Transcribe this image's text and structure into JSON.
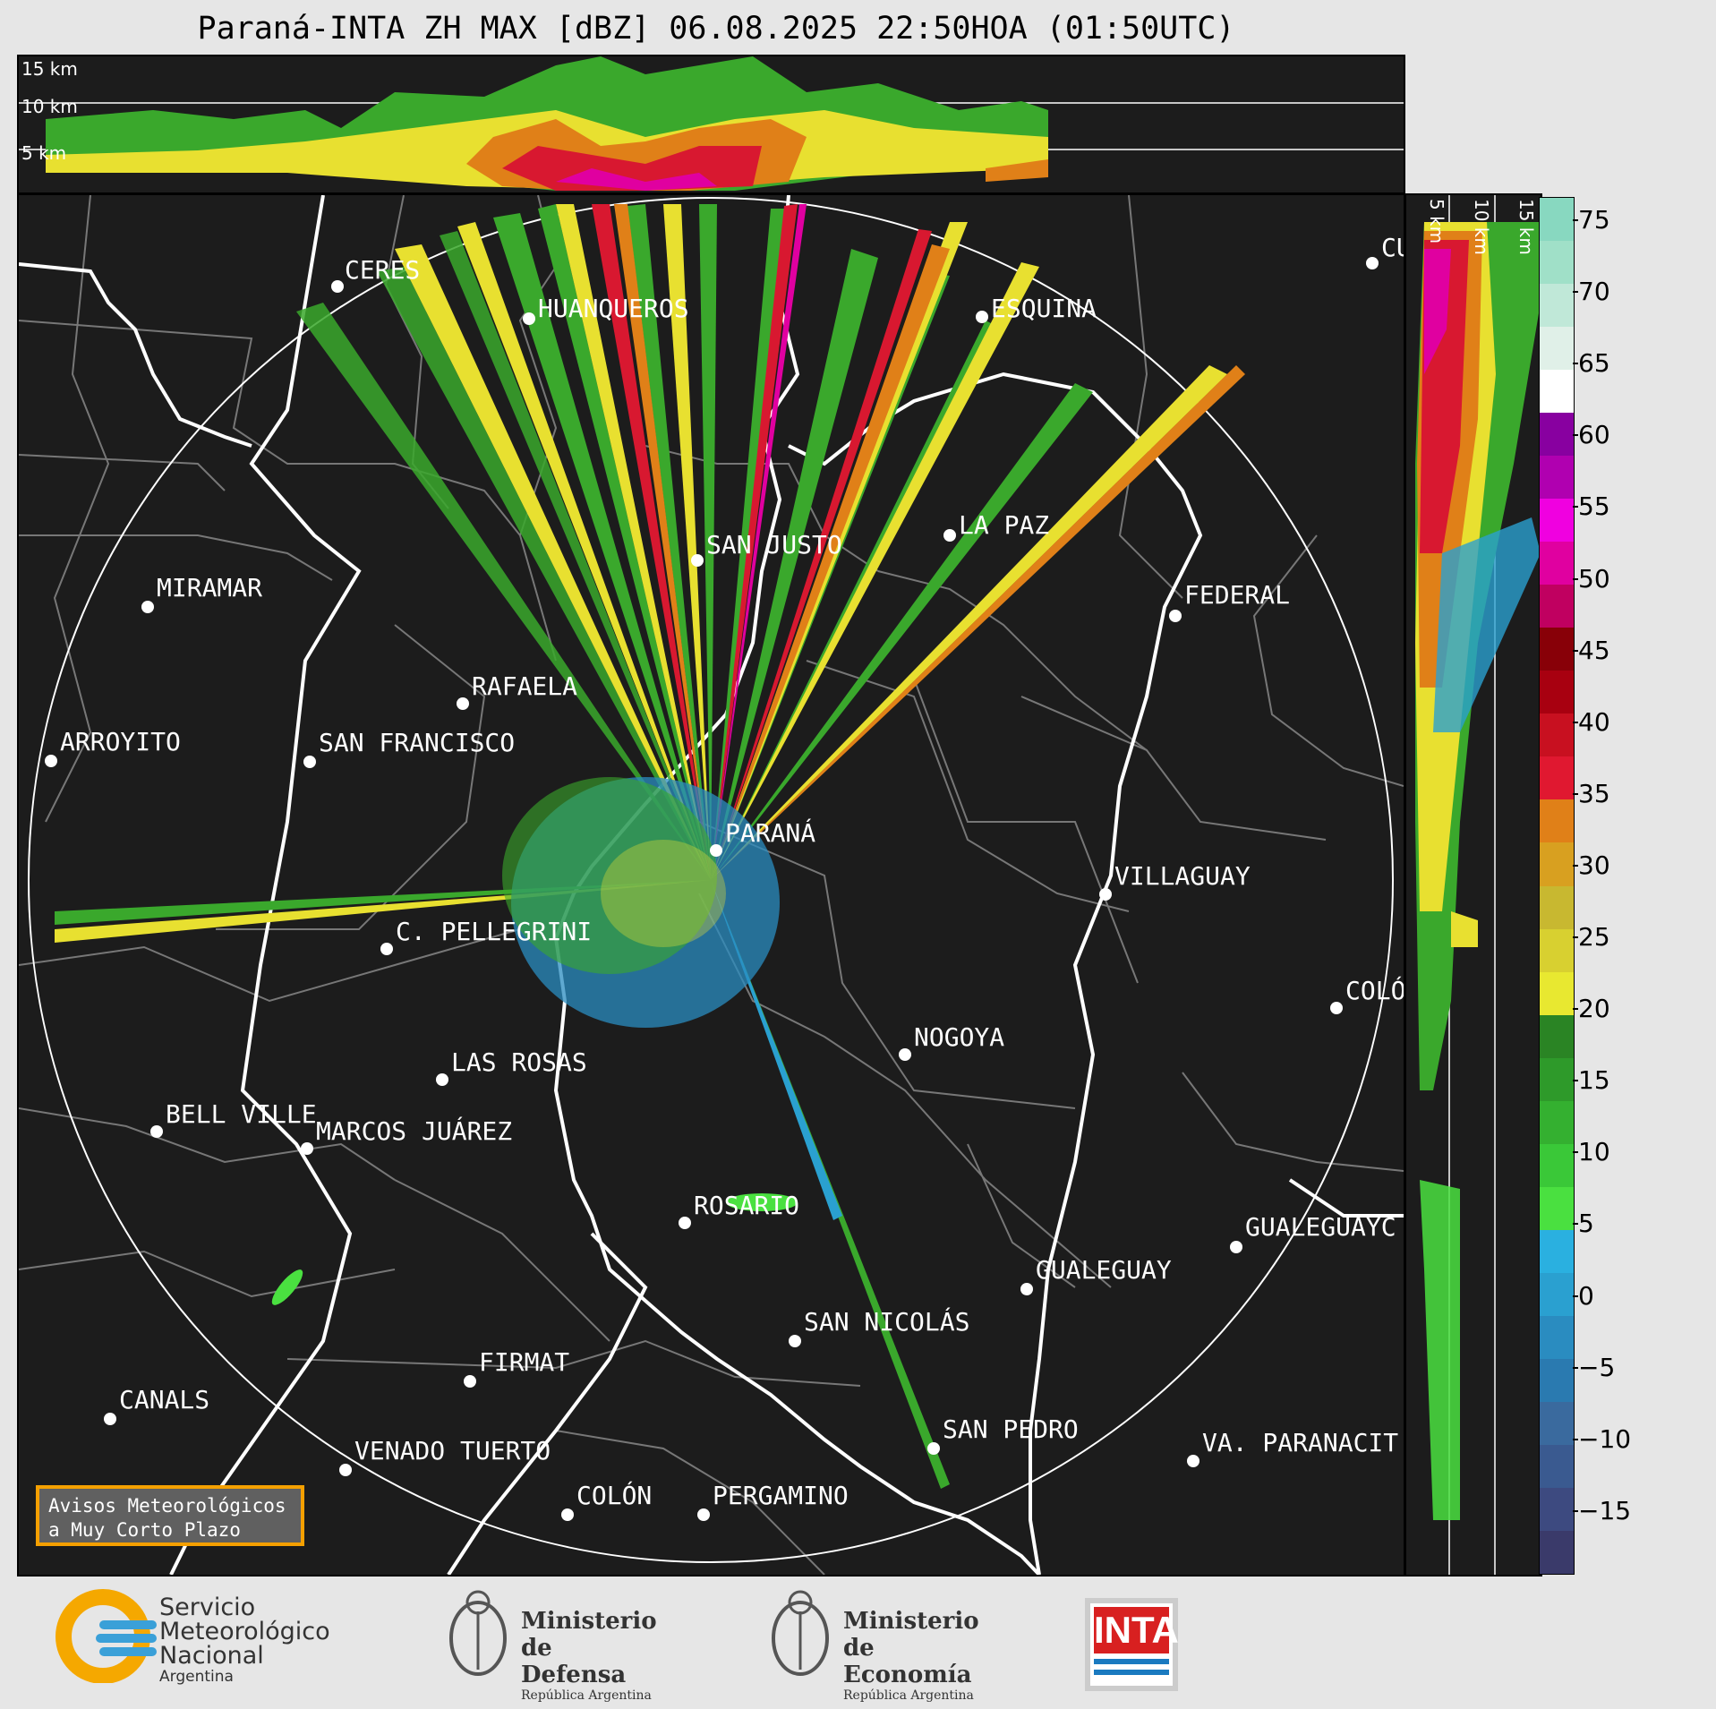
{
  "title": "Paraná-INTA ZH MAX [dBZ] 06.08.2025 22:50HOA (01:50UTC)",
  "top_panel": {
    "heights": [
      "15 km",
      "10 km",
      "5 km"
    ]
  },
  "side_panel": {
    "heights": [
      "5 km",
      "10 km",
      "15 km"
    ]
  },
  "cities": [
    {
      "name": "CERES"
    },
    {
      "name": "HUANQUEROS"
    },
    {
      "name": "ESQUINA"
    },
    {
      "name": "CU"
    },
    {
      "name": "SAN JUSTO"
    },
    {
      "name": "LA PAZ"
    },
    {
      "name": "MIRAMAR"
    },
    {
      "name": "FEDERAL"
    },
    {
      "name": "RAFAELA"
    },
    {
      "name": "ARROYITO"
    },
    {
      "name": "SAN FRANCISCO"
    },
    {
      "name": "PARANÁ"
    },
    {
      "name": "VILLAGUAY"
    },
    {
      "name": "C. PELLEGRINI"
    },
    {
      "name": "COLÓ"
    },
    {
      "name": "NOGOYA"
    },
    {
      "name": "LAS ROSAS"
    },
    {
      "name": "BELL VILLE"
    },
    {
      "name": "MARCOS JUÁREZ"
    },
    {
      "name": "ROSARIO"
    },
    {
      "name": "GUALEGUAYC"
    },
    {
      "name": "GUALEGUAY"
    },
    {
      "name": "SAN NICOLÁS"
    },
    {
      "name": "FIRMAT"
    },
    {
      "name": "CANALS"
    },
    {
      "name": "SAN PEDRO"
    },
    {
      "name": "VENADO TUERTO"
    },
    {
      "name": "VA. PARANACIT"
    },
    {
      "name": "COLÓN"
    },
    {
      "name": "PERGAMINO"
    }
  ],
  "colorbar": {
    "ticks": [
      "75",
      "70",
      "65",
      "60",
      "55",
      "50",
      "45",
      "40",
      "35",
      "30",
      "25",
      "20",
      "15",
      "10",
      "5",
      "0",
      "−5",
      "−10",
      "−15"
    ],
    "colors": [
      "#3a3a6a",
      "#3d4a80",
      "#3a5a90",
      "#3a6a9e",
      "#2a7ab0",
      "#2a8cc0",
      "#2aa0d0",
      "#2ab0e0",
      "#4ae040",
      "#3ac838",
      "#34b030",
      "#2e9a2a",
      "#2a8424",
      "#e8e830",
      "#d8d030",
      "#c8b830",
      "#d8a020",
      "#e08018",
      "#e01830",
      "#c81020",
      "#a80010",
      "#880008",
      "#c00060",
      "#e000a0",
      "#f000e0",
      "#b000b0",
      "#8800a0",
      "#ffffff",
      "#e0f0e8",
      "#c0e8d8",
      "#a0e0c8",
      "#88d8c0"
    ]
  },
  "avisos": {
    "line1": "Avisos Meteorológicos",
    "line2": "a Muy Corto Plazo"
  },
  "logos": {
    "smn": {
      "l1": "Servicio",
      "l2": "Meteorológico",
      "l3": "Nacional",
      "l4": "Argentina"
    },
    "defensa": {
      "l1": "Ministerio",
      "l2": "de Defensa",
      "l3": "República Argentina"
    },
    "economia": {
      "l1": "Ministerio",
      "l2": "de Economía",
      "l3": "República Argentina"
    },
    "inta": {
      "l1": "INTA"
    }
  }
}
